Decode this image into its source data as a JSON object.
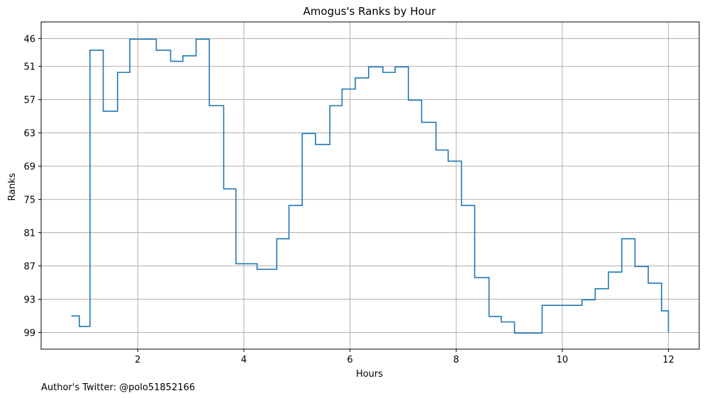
{
  "chart_data": {
    "type": "line",
    "drawstyle": "steps-post",
    "title": "Amogus's Ranks by Hour",
    "xlabel": "Hours",
    "ylabel": "Ranks",
    "xlim": [
      0.18,
      12.58
    ],
    "ylim": [
      102,
      43
    ],
    "y_inverted": true,
    "grid": true,
    "xticks": [
      2,
      4,
      6,
      8,
      10,
      12
    ],
    "xtick_labels": [
      "2",
      "4",
      "6",
      "8",
      "10",
      "12"
    ],
    "yticks": [
      46,
      51,
      57,
      63,
      69,
      75,
      81,
      87,
      93,
      99
    ],
    "ytick_labels": [
      "46",
      "51",
      "57",
      "63",
      "69",
      "75",
      "81",
      "87",
      "93",
      "99"
    ],
    "series": [
      {
        "color": "#1f77b4",
        "x": [
          0.75,
          0.9,
          1.1,
          1.35,
          1.62,
          1.85,
          2.1,
          2.35,
          2.62,
          2.85,
          3.1,
          3.35,
          3.62,
          3.85,
          4.25,
          4.62,
          4.85,
          5.1,
          5.35,
          5.62,
          5.85,
          6.1,
          6.35,
          6.62,
          6.85,
          7.1,
          7.35,
          7.62,
          7.85,
          8.1,
          8.35,
          8.62,
          8.85,
          9.1,
          9.62,
          10.12,
          10.37,
          10.62,
          10.87,
          11.12,
          11.37,
          11.62,
          11.87,
          12.0
        ],
        "y": [
          96,
          97.9,
          48.1,
          59.1,
          52.1,
          46.1,
          46.1,
          48.1,
          50.1,
          49.1,
          46.1,
          58.1,
          73.1,
          86.6,
          87.6,
          82.1,
          76.1,
          63.1,
          65.1,
          58.1,
          55.1,
          53.1,
          51.1,
          52.1,
          51.1,
          57.1,
          61.1,
          66.1,
          68.1,
          76.1,
          89.1,
          96.1,
          97.1,
          99.1,
          94.1,
          94.1,
          93.1,
          91.1,
          88.1,
          82.1,
          87.1,
          90.1,
          95.1,
          98.9
        ]
      }
    ]
  },
  "footer": {
    "credit": "Author's Twitter: @polo51852166"
  }
}
